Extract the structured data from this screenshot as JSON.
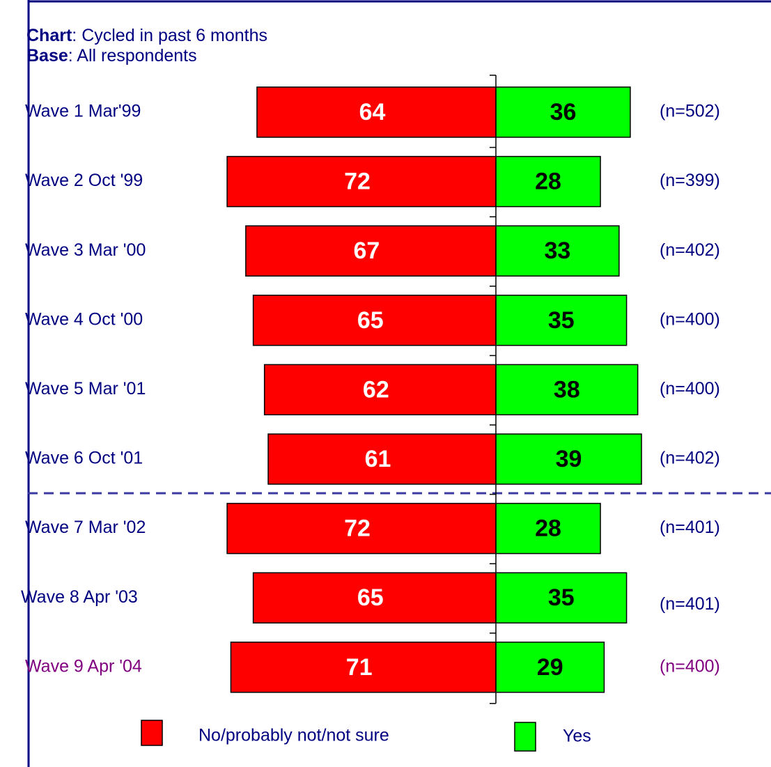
{
  "chart_data": {
    "type": "diverging_bar",
    "title_label": "Chart",
    "title": ": Cycled in past 6 months",
    "subtitle_label": "Base",
    "subtitle": ": All respondents",
    "categories": [
      "Wave 1 Mar'99",
      "Wave 2 Oct '99",
      "Wave 3 Mar '00",
      "Wave 4 Oct '00",
      "Wave 5 Mar '01",
      "Wave 6 Oct '01",
      "Wave 7 Mar '02",
      "Wave 8 Apr '03",
      "Wave 9 Apr '04"
    ],
    "category_colors": [
      "#000080",
      "#000080",
      "#000080",
      "#000080",
      "#000080",
      "#000080",
      "#000080",
      "#000080",
      "#800080"
    ],
    "annotations": [
      "(n=502)",
      "(n=399)",
      "(n=402)",
      "(n=400)",
      "(n=400)",
      "(n=402)",
      "(n=401)",
      "(n=401)",
      "(n=400)"
    ],
    "series": [
      {
        "name": "No/probably not/not sure",
        "color": "#ff0000",
        "values": [
          64,
          72,
          67,
          65,
          62,
          61,
          72,
          65,
          71
        ]
      },
      {
        "name": "Yes",
        "color": "#00ff00",
        "values": [
          36,
          28,
          33,
          35,
          38,
          39,
          28,
          35,
          29
        ]
      }
    ]
  }
}
